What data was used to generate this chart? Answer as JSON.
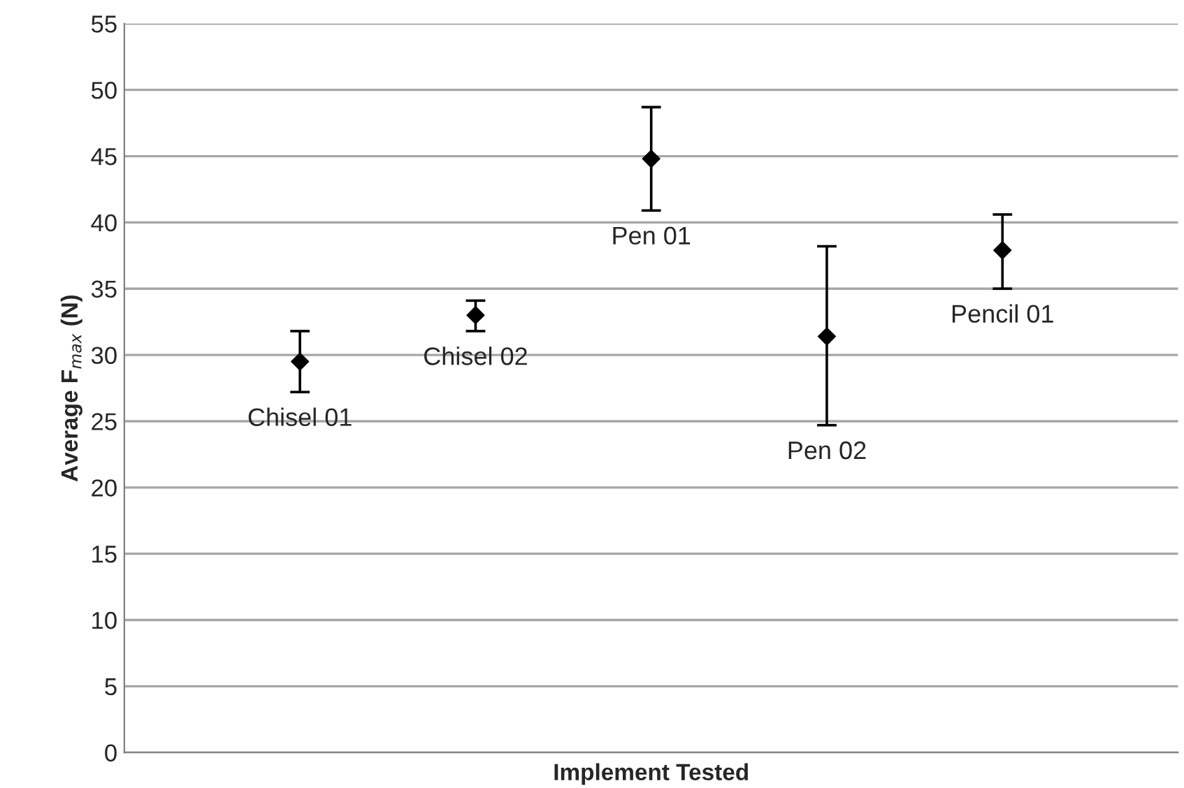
{
  "chart_data": {
    "type": "scatter",
    "categories": [
      "Chisel 01",
      "Chisel 02",
      "Pen 01",
      "Pen 02",
      "Pencil 01"
    ],
    "values": [
      29.5,
      33.0,
      44.8,
      31.4,
      37.9
    ],
    "errors": [
      [
        27.2,
        31.8
      ],
      [
        31.8,
        34.1
      ],
      [
        40.9,
        48.7
      ],
      [
        24.7,
        38.2
      ],
      [
        35.0,
        40.6
      ]
    ],
    "color": "#000000",
    "marker": "diamond",
    "xlabel": "Implement Tested",
    "ylabel": "Average F$_{max}$ (N)",
    "ylim": [
      0,
      55
    ],
    "yticks": [
      0,
      5,
      10,
      15,
      20,
      25,
      30,
      35,
      40,
      45,
      50,
      55
    ],
    "grid": "y",
    "tick_labels": "y"
  }
}
